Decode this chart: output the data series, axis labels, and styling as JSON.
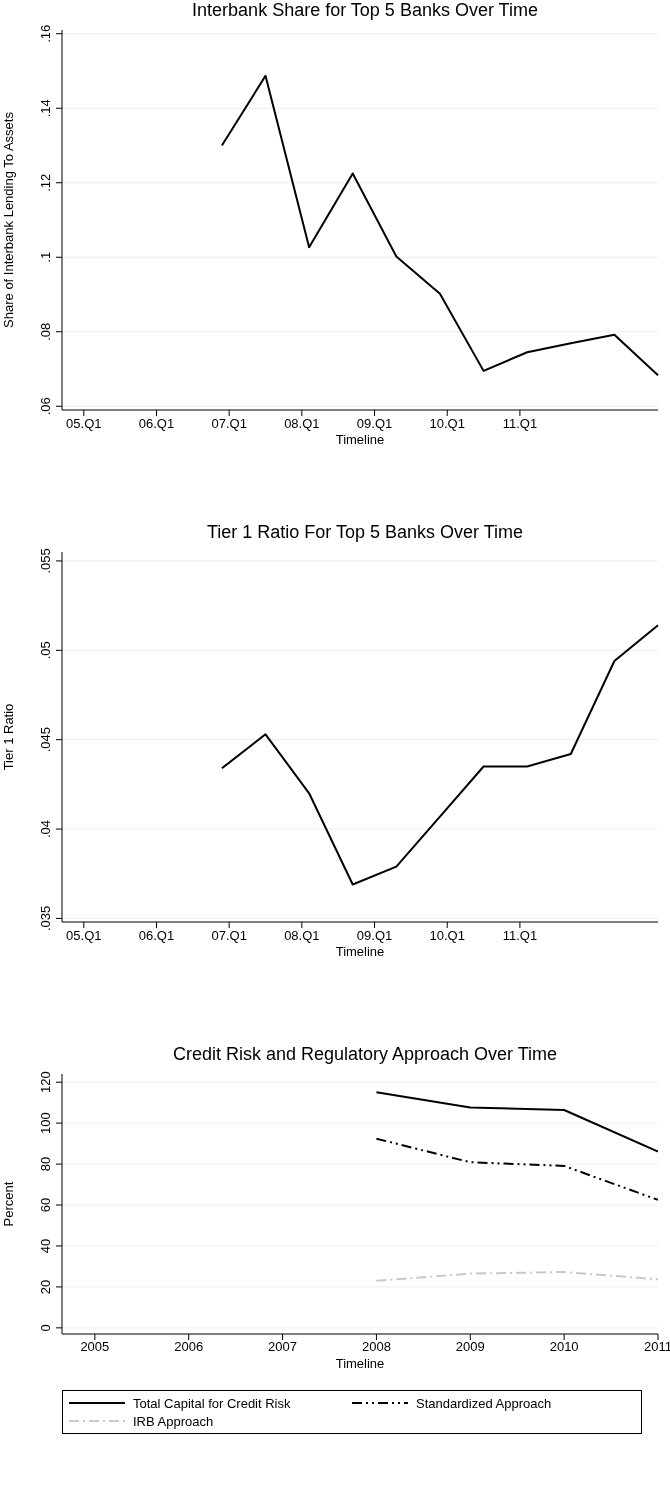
{
  "chart_data": [
    {
      "type": "line",
      "title": "Interbank Share for Top 5 Banks Over Time",
      "xlabel": "Timeline",
      "ylabel": "Share of Interbank Lending To Assets",
      "categories": [
        null,
        null,
        null,
        "05.Q1",
        null,
        null,
        null,
        null,
        null,
        null,
        null,
        null,
        null,
        "06.Q1",
        null,
        null,
        null,
        null,
        null,
        null,
        null,
        null,
        null,
        "07.Q1",
        null,
        null,
        null,
        null,
        null,
        null,
        null,
        null,
        null,
        "08.Q1",
        null,
        null,
        null,
        null,
        null,
        null,
        null,
        null,
        null,
        "09.Q1",
        null,
        null,
        null,
        null,
        null,
        null,
        null,
        null,
        null,
        "10.Q1",
        null,
        null,
        null,
        null,
        null,
        null,
        null,
        null,
        null,
        "11.Q1",
        null,
        null,
        null,
        null,
        null,
        null,
        null,
        null,
        null,
        null,
        null,
        null,
        null,
        null,
        null,
        null,
        null,
        null,
        null
      ],
      "ylim": [
        0.059,
        0.161
      ],
      "yticks": [
        {
          "value": 0.06,
          "label": ".06"
        },
        {
          "value": 0.08,
          "label": ".08"
        },
        {
          "value": 0.1,
          "label": ".1"
        },
        {
          "value": 0.12,
          "label": ".12"
        },
        {
          "value": 0.14,
          "label": ".14"
        },
        {
          "value": 0.16,
          "label": ".16"
        }
      ],
      "grid": "y",
      "series": [
        {
          "color": "#000000",
          "values": [
            null,
            null,
            null,
            null,
            null,
            null,
            null,
            null,
            null,
            null,
            null,
            null,
            null,
            null,
            null,
            null,
            null,
            null,
            null,
            null,
            null,
            null,
            0.13,
            null,
            null,
            null,
            null,
            null,
            0.1487,
            null,
            null,
            null,
            null,
            null,
            0.1027,
            null,
            null,
            null,
            null,
            null,
            0.1225,
            null,
            null,
            null,
            null,
            null,
            0.1002,
            null,
            null,
            null,
            null,
            null,
            0.0902,
            null,
            null,
            null,
            null,
            null,
            0.0695,
            null,
            null,
            null,
            null,
            null,
            0.0745,
            null,
            null,
            null,
            null,
            null,
            0.0769,
            null,
            null,
            null,
            null,
            null,
            0.0792,
            null,
            null,
            null,
            null,
            null,
            0.0683
          ]
        }
      ]
    },
    {
      "type": "line",
      "title": "Tier 1 Ratio For Top 5 Banks Over Time",
      "xlabel": "Timeline",
      "ylabel": "Tier 1 Ratio",
      "categories": [
        null,
        null,
        null,
        "05.Q1",
        null,
        null,
        null,
        null,
        null,
        null,
        null,
        null,
        null,
        "06.Q1",
        null,
        null,
        null,
        null,
        null,
        null,
        null,
        null,
        null,
        "07.Q1",
        null,
        null,
        null,
        null,
        null,
        null,
        null,
        null,
        null,
        "08.Q1",
        null,
        null,
        null,
        null,
        null,
        null,
        null,
        null,
        null,
        "09.Q1",
        null,
        null,
        null,
        null,
        null,
        null,
        null,
        null,
        null,
        "10.Q1",
        null,
        null,
        null,
        null,
        null,
        null,
        null,
        null,
        null,
        "11.Q1",
        null,
        null,
        null,
        null,
        null,
        null,
        null,
        null,
        null,
        null,
        null,
        null,
        null,
        null,
        null,
        null,
        null,
        null,
        null
      ],
      "ylim": [
        0.0348,
        0.0555
      ],
      "yticks": [
        {
          "value": 0.035,
          "label": ".035"
        },
        {
          "value": 0.04,
          "label": ".04"
        },
        {
          "value": 0.045,
          "label": ".045"
        },
        {
          "value": 0.05,
          "label": ".05"
        },
        {
          "value": 0.055,
          "label": ".055"
        }
      ],
      "grid": "y",
      "series": [
        {
          "color": "#000000",
          "values": [
            null,
            null,
            null,
            null,
            null,
            null,
            null,
            null,
            null,
            null,
            null,
            null,
            null,
            null,
            null,
            null,
            null,
            null,
            null,
            null,
            null,
            null,
            0.0434,
            null,
            null,
            null,
            null,
            null,
            0.0453,
            null,
            null,
            null,
            null,
            null,
            0.042,
            null,
            null,
            null,
            null,
            null,
            0.0369,
            null,
            null,
            null,
            null,
            null,
            0.0379,
            null,
            null,
            null,
            null,
            null,
            0.0407,
            null,
            null,
            null,
            null,
            null,
            0.0435,
            null,
            null,
            null,
            null,
            null,
            0.0435,
            null,
            null,
            null,
            null,
            null,
            0.0442,
            null,
            null,
            null,
            null,
            null,
            0.0494,
            null,
            null,
            null,
            null,
            null,
            0.0514
          ]
        }
      ]
    },
    {
      "type": "line",
      "title": "Credit Risk and Regulatory Approach Over Time",
      "xlabel": "Timeline",
      "ylabel": "Percent",
      "x": [
        2008,
        2009,
        2010,
        2011
      ],
      "xlim": [
        2004.65,
        2011
      ],
      "xticks": [
        2005,
        2006,
        2007,
        2008,
        2009,
        2010,
        2011
      ],
      "ylim": [
        -3,
        124
      ],
      "yticks": [
        0,
        20,
        40,
        60,
        80,
        100,
        120
      ],
      "grid": "y",
      "legend": "bottom",
      "series": [
        {
          "name": "Total Capital for Credit Risk",
          "color": "#000000",
          "line_style": "solid",
          "values": [
            115.1,
            107.6,
            106.4,
            86.1
          ]
        },
        {
          "name": "Standardized Approach",
          "color": "#000000",
          "line_style": "dashed",
          "values": [
            92.4,
            80.9,
            79.1,
            62.5
          ]
        },
        {
          "name": "IRB Approach",
          "color": "#c8c8c8",
          "line_style": "dotted",
          "values": [
            23,
            26.5,
            27.3,
            23.7
          ]
        }
      ]
    }
  ]
}
